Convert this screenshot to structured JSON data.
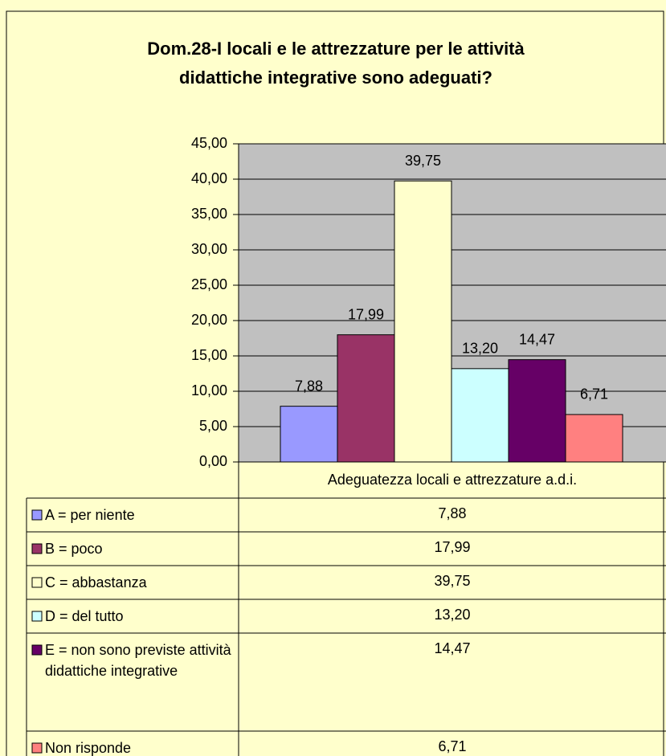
{
  "chart_data": {
    "type": "bar",
    "title": [
      "Dom.28-I locali e le attrezzature per le attività",
      "didattiche integrative sono adeguati?"
    ],
    "categories": [
      "Adeguatezza locali e attrezzature a.d.i."
    ],
    "series": [
      {
        "name": "A = per niente",
        "color": "#9999ff",
        "values": [
          7.88
        ],
        "value_labels": [
          "7,88"
        ]
      },
      {
        "name": "B = poco",
        "color": "#993366",
        "values": [
          17.99
        ],
        "value_labels": [
          "17,99"
        ]
      },
      {
        "name": "C = abbastanza",
        "color": "#ffffcc",
        "values": [
          39.75
        ],
        "value_labels": [
          "39,75"
        ]
      },
      {
        "name": "D = del tutto",
        "color": "#ccffff",
        "values": [
          13.2
        ],
        "value_labels": [
          "13,20"
        ]
      },
      {
        "name": "E = non sono previste attività didattiche integrative",
        "color": "#660066",
        "values": [
          14.47
        ],
        "value_labels": [
          "14,47"
        ]
      },
      {
        "name": "Non risponde",
        "color": "#ff8080",
        "values": [
          6.71
        ],
        "value_labels": [
          "6,71"
        ]
      }
    ],
    "ylim": [
      0,
      45
    ],
    "yticks": [
      {
        "value": 0,
        "label": "0,00"
      },
      {
        "value": 5,
        "label": "5,00"
      },
      {
        "value": 10,
        "label": "10,00"
      },
      {
        "value": 15,
        "label": "15,00"
      },
      {
        "value": 20,
        "label": "20,00"
      },
      {
        "value": 25,
        "label": "25,00"
      },
      {
        "value": 30,
        "label": "30,00"
      },
      {
        "value": 35,
        "label": "35,00"
      },
      {
        "value": 40,
        "label": "40,00"
      },
      {
        "value": 45,
        "label": "45,00"
      }
    ],
    "grid": true,
    "data_table": true
  }
}
